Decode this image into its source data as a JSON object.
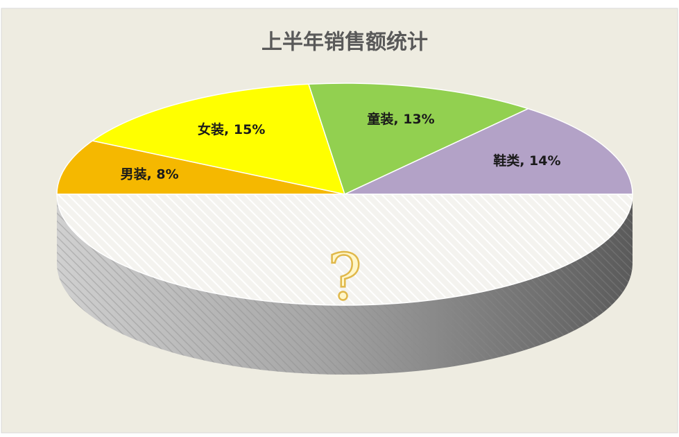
{
  "chart_data": {
    "type": "pie3d",
    "title": "上半年销售额统计",
    "labels": [
      "男装, 8%",
      "女装, 15%",
      "童装, 13%",
      "鞋类, 14%",
      "?"
    ],
    "values": [
      8,
      15,
      13,
      14,
      50
    ],
    "colors": [
      "#f5b800",
      "#ffff00",
      "#92d050",
      "#b3a2c7",
      "#f4f3ef"
    ],
    "start_angle": 180,
    "direction": "clockwise"
  }
}
